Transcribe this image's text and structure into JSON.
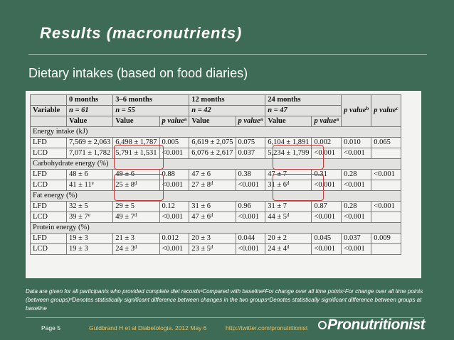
{
  "slide": {
    "title": "Results (macronutrients)",
    "subtitle": "Dietary intakes (based on food diaries)"
  },
  "table": {
    "groups": [
      "0 months",
      "3–6 months",
      "12 months",
      "24 months"
    ],
    "variable_label": "Variable",
    "n_values": [
      "n = 61",
      "n = 55",
      "n = 42",
      "n = 47"
    ],
    "value_label": "Value",
    "p_value_label": "p value",
    "sup_a": "a",
    "sup_b": "b",
    "sup_c": "c",
    "sections": [
      {
        "label": "Energy intake (kJ)",
        "rows": [
          {
            "group": "LFD",
            "cells": [
              "7,569 ± 2,063",
              "6,498 ± 1,787",
              "0.005",
              "6,619 ± 2,075",
              "0.075",
              "6,104 ± 1,891",
              "0.002",
              "0.010",
              "0.065"
            ]
          },
          {
            "group": "LCD",
            "cells": [
              "7,071 ± 1,782",
              "5,791 ± 1,531",
              "<0.001",
              "6,076 ± 2,617",
              "0.037",
              "5,234 ± 1,799",
              "<0.001",
              "<0.001",
              ""
            ]
          }
        ]
      },
      {
        "label": "Carbohydrate energy (%)",
        "rows": [
          {
            "group": "LFD",
            "cells": [
              "48 ± 6",
              "49 ± 6",
              "0.88",
              "47 ± 6",
              "0.38",
              "47 ± 7",
              "0.31",
              "0.28",
              "<0.001"
            ]
          },
          {
            "group": "LCD",
            "cells": [
              "41 ± 11",
              "25 ± 8",
              "<0.001",
              "27 ± 8",
              "<0.001",
              "31 ± 6",
              "<0.001",
              "<0.001",
              ""
            ],
            "sups": [
              "e",
              "d",
              "",
              "d",
              "",
              "d",
              "",
              "",
              ""
            ]
          }
        ]
      },
      {
        "label": "Fat energy (%)",
        "rows": [
          {
            "group": "LFD",
            "cells": [
              "32 ± 5",
              "29 ± 5",
              "0.12",
              "31 ± 6",
              "0.96",
              "31 ± 7",
              "0.87",
              "0.28",
              "<0.001"
            ]
          },
          {
            "group": "LCD",
            "cells": [
              "39 ± 7",
              "49 ± 7",
              "<0.001",
              "47 ± 6",
              "<0.001",
              "44 ± 5",
              "<0.001",
              "<0.001",
              ""
            ],
            "sups": [
              "e",
              "d",
              "",
              "d",
              "",
              "d",
              "",
              "",
              ""
            ]
          }
        ]
      },
      {
        "label": "Protein energy (%)",
        "rows": [
          {
            "group": "LFD",
            "cells": [
              "19 ± 3",
              "21 ± 3",
              "0.012",
              "20 ± 3",
              "0.044",
              "20 ± 2",
              "0.045",
              "0.037",
              "0.009"
            ]
          },
          {
            "group": "LCD",
            "cells": [
              "19 ± 3",
              "24 ± 3",
              "<0.001",
              "23 ± 5",
              "<0.001",
              "24 ± 4",
              "<0.001",
              "<0.001",
              ""
            ],
            "sups": [
              "",
              "d",
              "",
              "d",
              "",
              "d",
              "",
              "",
              ""
            ]
          }
        ]
      }
    ]
  },
  "footnote": "Data are given for all participants who provided complete diet recordsᵃCompared with baselineᵇFor change over all time pointsᶜFor change over all time points (between groups)ᵈDenotes statistically significant difference between changes in the two groupsᵉDenotes statistically significant difference between groups at baseline",
  "footer": {
    "page": "Page 5",
    "citation": "Guldbrand H et al Diabetologia. 2012 May 6",
    "link": "http://twitter.com/pronutritionist",
    "logo": "Pronutritionist"
  },
  "colors": {
    "background": "#3d6b55",
    "highlight": "#c53a3a",
    "footer_link": "#e9c46a"
  }
}
